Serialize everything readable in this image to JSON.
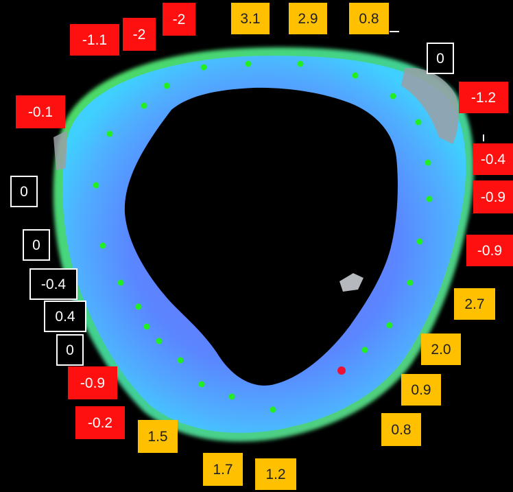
{
  "colors": {
    "negative": "#ff1010",
    "positive": "#ffc000",
    "neutral_border": "#ffffff",
    "background": "#000000",
    "wall_blue": "#5a86ff",
    "wall_edge": "#3fd0ff",
    "rim_green": "#3fcf3a",
    "marker_green": "#22ee22",
    "marker_red": "#ee1133"
  },
  "labels": [
    {
      "id": "top-1",
      "text": "3.1",
      "kind": "positive"
    },
    {
      "id": "top-2",
      "text": "2.9",
      "kind": "positive"
    },
    {
      "id": "top-3",
      "text": "0.8",
      "kind": "positive"
    },
    {
      "id": "top-right-1",
      "text": "0",
      "kind": "zero"
    },
    {
      "id": "right-1",
      "text": "-1.2",
      "kind": "negative"
    },
    {
      "id": "right-2",
      "text": "-0.4",
      "kind": "negative"
    },
    {
      "id": "right-3",
      "text": "-0.9",
      "kind": "negative"
    },
    {
      "id": "right-4",
      "text": "-0.9",
      "kind": "negative"
    },
    {
      "id": "right-5",
      "text": "2.7",
      "kind": "positive"
    },
    {
      "id": "bottom-right-1",
      "text": "2.0",
      "kind": "positive"
    },
    {
      "id": "bottom-right-2",
      "text": "0.9",
      "kind": "positive"
    },
    {
      "id": "bottom-right-3",
      "text": "0.8",
      "kind": "positive"
    },
    {
      "id": "bottom-1",
      "text": "1.2",
      "kind": "positive"
    },
    {
      "id": "bottom-2",
      "text": "1.7",
      "kind": "positive"
    },
    {
      "id": "bottom-left-1",
      "text": "1.5",
      "kind": "positive"
    },
    {
      "id": "bottom-left-2",
      "text": "-0.2",
      "kind": "negative"
    },
    {
      "id": "bottom-left-3",
      "text": "-0.9",
      "kind": "negative"
    },
    {
      "id": "left-1",
      "text": "0",
      "kind": "zero"
    },
    {
      "id": "left-2",
      "text": "0.4",
      "kind": "zero"
    },
    {
      "id": "left-3",
      "text": "-0.4",
      "kind": "zero"
    },
    {
      "id": "left-4",
      "text": "0",
      "kind": "zero"
    },
    {
      "id": "left-5",
      "text": "0",
      "kind": "zero"
    },
    {
      "id": "top-left-1",
      "text": "-0.1",
      "kind": "negative"
    },
    {
      "id": "top-left-2",
      "text": "-1.1",
      "kind": "negative"
    },
    {
      "id": "top-left-3",
      "text": "-2",
      "kind": "negative"
    },
    {
      "id": "top-left-4",
      "text": "-2",
      "kind": "negative"
    }
  ]
}
